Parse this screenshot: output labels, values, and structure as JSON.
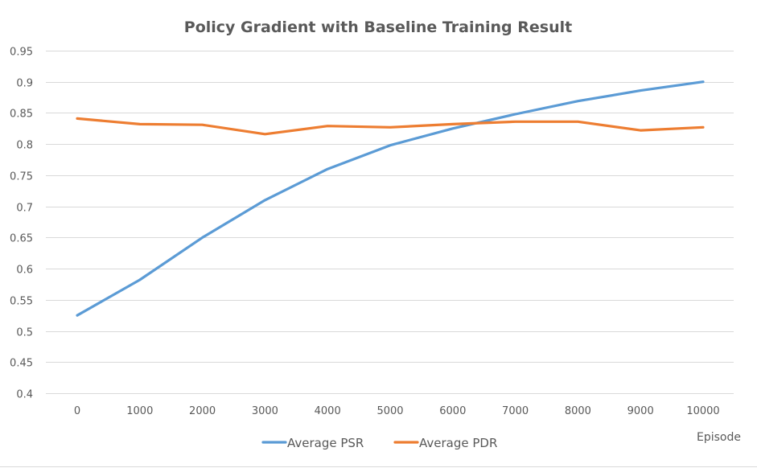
{
  "chart_data": {
    "type": "line",
    "title": "Policy Gradient with Baseline Training Result",
    "xlabel": "Episode",
    "ylabel": "",
    "x": [
      0,
      1000,
      2000,
      3000,
      4000,
      5000,
      6000,
      7000,
      8000,
      9000,
      10000
    ],
    "x_tick_labels": [
      "0",
      "1000",
      "2000",
      "3000",
      "4000",
      "5000",
      "6000",
      "7000",
      "8000",
      "9000",
      "10000"
    ],
    "ylim": [
      0.4,
      0.95
    ],
    "y_ticks": [
      0.4,
      0.45,
      0.5,
      0.55,
      0.6,
      0.65,
      0.7,
      0.75,
      0.8,
      0.85,
      0.9,
      0.95
    ],
    "y_tick_labels": [
      "0.4",
      "0.45",
      "0.5",
      "0.55",
      "0.6",
      "0.65",
      "0.7",
      "0.75",
      "0.8",
      "0.85",
      "0.9",
      "0.95"
    ],
    "grid": true,
    "legend_position": "bottom",
    "series": [
      {
        "name": "Average PSR",
        "color": "#5b9bd5",
        "values": [
          0.525,
          0.582,
          0.65,
          0.71,
          0.76,
          0.798,
          0.825,
          0.848,
          0.869,
          0.886,
          0.9
        ]
      },
      {
        "name": "Average PDR",
        "color": "#ed7d31",
        "values": [
          0.841,
          0.832,
          0.831,
          0.816,
          0.829,
          0.827,
          0.832,
          0.836,
          0.836,
          0.822,
          0.827
        ]
      }
    ]
  }
}
